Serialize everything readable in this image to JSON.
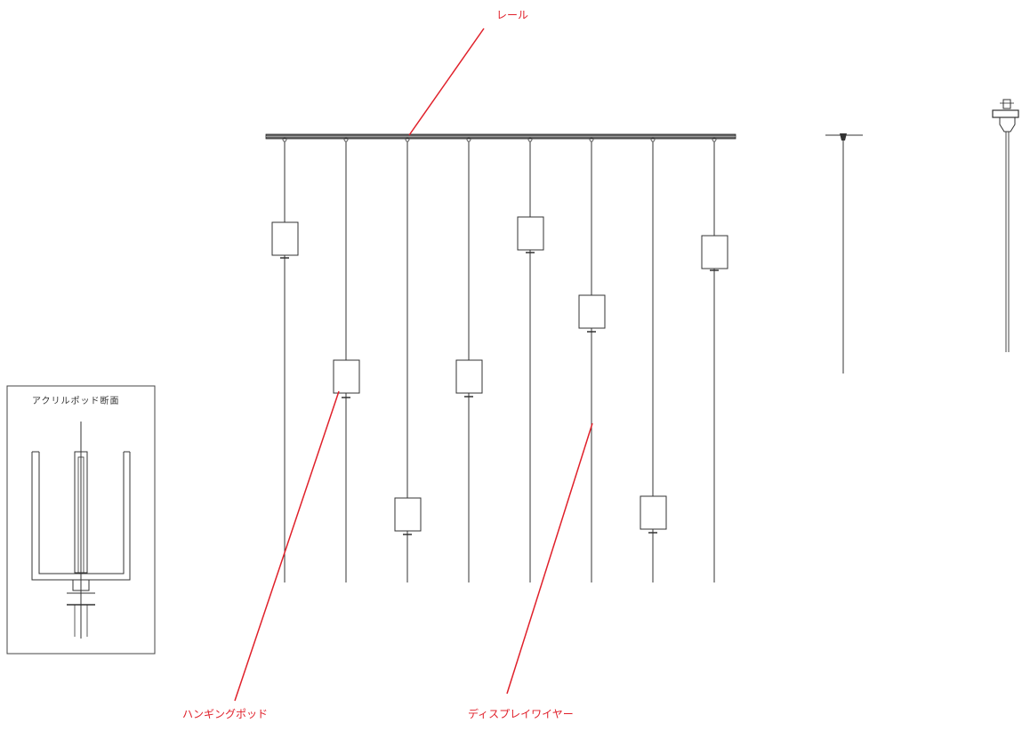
{
  "labels": {
    "rail": "レール",
    "pod": "ハンギングポッド",
    "wire": "ディスプレイワイヤー",
    "inset_title": "アクリルポッド断面"
  },
  "colors": {
    "callout": "#e0202a",
    "line": "#333333",
    "rail": "#555555"
  }
}
